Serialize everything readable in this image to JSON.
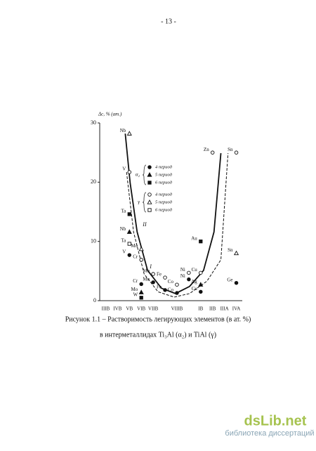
{
  "page_number": "- 13 -",
  "chart_data": {
    "type": "scatter",
    "y_label": "Δc, % (ат.)",
    "categories": [
      "IIIB",
      "IVB",
      "VB",
      "VIB",
      "VIIB",
      null,
      "VIIIB",
      null,
      "IB",
      "IIB",
      "IIIA",
      "IVA"
    ],
    "xlim": [
      -0.5,
      11.5
    ],
    "ylim": [
      0,
      30
    ],
    "yticks": [
      0,
      10,
      20,
      30
    ],
    "legend_groups": [
      {
        "label": "α₂",
        "series": [
          0,
          1,
          2
        ]
      },
      {
        "label": "γ",
        "series": [
          3,
          4,
          5
        ]
      }
    ],
    "series": [
      {
        "name": "4 период",
        "marker": "circle",
        "filled": true,
        "x": [
          2,
          3,
          4,
          5,
          6,
          7,
          8,
          11
        ],
        "values": [
          7.7,
          2.8,
          3.1,
          1.8,
          1.3,
          3.6,
          1.5,
          3
        ],
        "labels": [
          "V",
          "Cr",
          "Mn",
          "Fe",
          "Co",
          "Ni",
          "Cu",
          "Ge"
        ]
      },
      {
        "name": "5 период",
        "marker": "triangle",
        "filled": true,
        "x": [
          2,
          3,
          8
        ],
        "values": [
          11.6,
          1.4,
          2.7
        ],
        "labels": [
          "Nb",
          "Mo",
          "Ag"
        ]
      },
      {
        "name": "6 период",
        "marker": "square",
        "filled": true,
        "x": [
          2,
          3,
          8
        ],
        "values": [
          14.6,
          0.5,
          10
        ],
        "labels": [
          "Ta",
          "W",
          "Au"
        ]
      },
      {
        "name": "4 период",
        "marker": "circle",
        "filled": false,
        "x": [
          2,
          3,
          4,
          5,
          6,
          7,
          8,
          9,
          11
        ],
        "values": [
          21.7,
          6.9,
          4.5,
          3.9,
          2.7,
          4.7,
          4.7,
          25,
          25
        ],
        "labels": [
          "V",
          "Cr",
          "Mn",
          "Fe",
          "Co",
          "Ni",
          "Cu",
          "Zn",
          "Sn"
        ]
      },
      {
        "name": "5 период",
        "marker": "triangle",
        "filled": false,
        "x": [
          2,
          3,
          11
        ],
        "values": [
          28.2,
          8.7,
          8
        ],
        "labels": [
          "Nb",
          "Mo",
          "Sn"
        ]
      },
      {
        "name": "6 период",
        "marker": "square",
        "filled": false,
        "x": [
          2
        ],
        "values": [
          9.6
        ],
        "labels": [
          "Ta"
        ]
      }
    ],
    "curves": [
      {
        "label": "II",
        "dash": false,
        "x": [
          1.65,
          2.06,
          2.65,
          3.53,
          4.7,
          5.88,
          7.06,
          8.24,
          9.12,
          9.7
        ],
        "values": [
          28.2,
          19.9,
          11.6,
          5.1,
          2.1,
          1.2,
          2.4,
          5.1,
          11.6,
          24.9
        ]
      },
      {
        "label": "I",
        "dash": true,
        "x": [
          1.76,
          2.35,
          3.24,
          4.41,
          5.76,
          7.06,
          8.53,
          9.7,
          10.3
        ],
        "values": [
          21.7,
          11.6,
          4.5,
          1.5,
          0.6,
          1.2,
          3.3,
          6.9,
          24.9
        ]
      }
    ]
  },
  "caption": [
    "Рисунок 1.1 – Растворимость легирующих элементов (в ат. %)",
    "в интерметаллидах Ti₃Al (α₂) и TiAl (γ)"
  ],
  "watermark": {
    "logo": "dsLib.net",
    "tagline": "библиотека диссертаций"
  }
}
